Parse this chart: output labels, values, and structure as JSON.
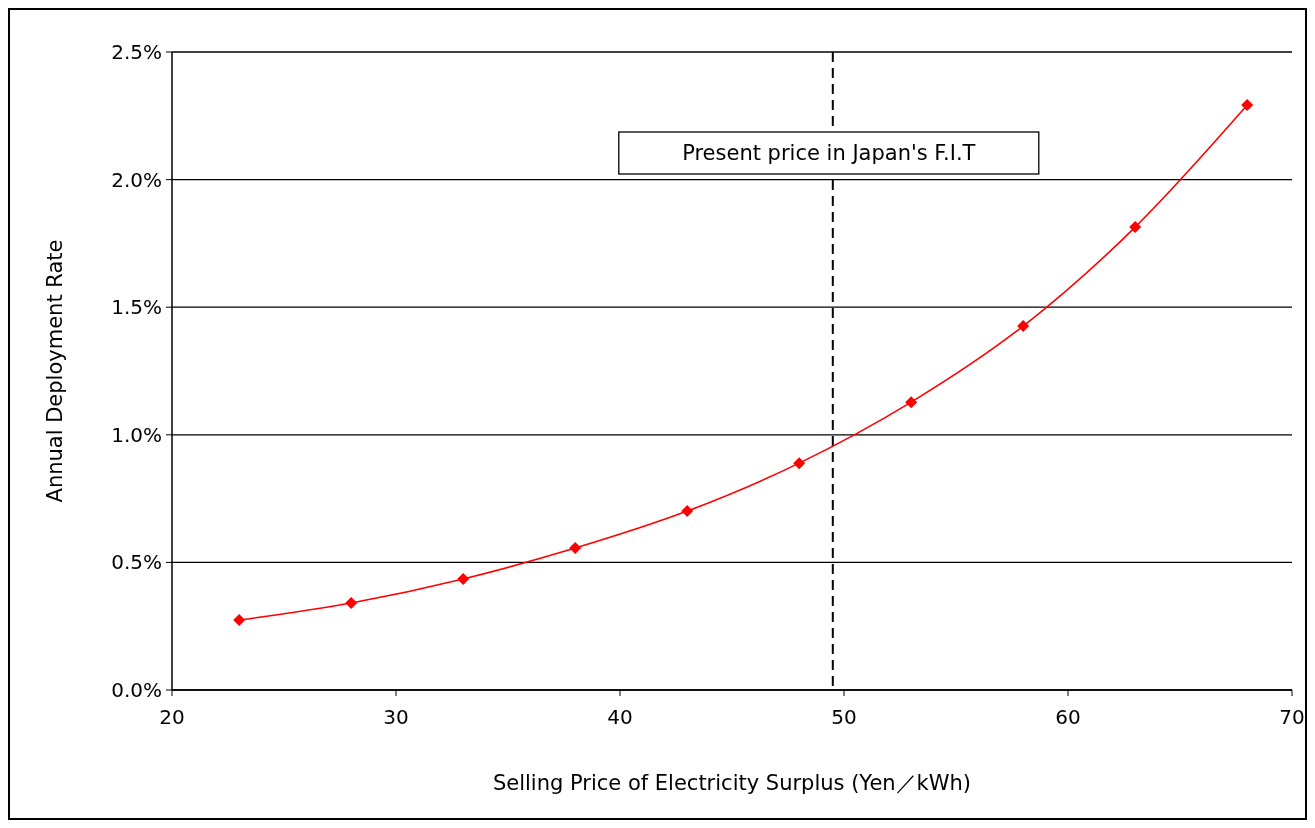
{
  "chart_data": {
    "type": "line",
    "xlabel": "Selling Price of Electricity Surplus (Yen／kWh)",
    "ylabel": "Annual Deployment Rate",
    "x": [
      23,
      28,
      33,
      38,
      43,
      48,
      53,
      58,
      63,
      68
    ],
    "series": [
      {
        "color": "#ff0000",
        "values": [
          0.274,
          0.341,
          0.435,
          0.556,
          0.701,
          0.889,
          1.128,
          1.426,
          1.814,
          2.292
        ]
      }
    ],
    "xlim": [
      20,
      70
    ],
    "xticks": [
      20,
      30,
      40,
      50,
      60,
      70
    ],
    "ylim": [
      0,
      2.5
    ],
    "yticks": [
      {
        "value": 0,
        "label": "0.0%"
      },
      {
        "value": 0.5,
        "label": "0.5%"
      },
      {
        "value": 1,
        "label": "1.0%"
      },
      {
        "value": 1.5,
        "label": "1.5%"
      },
      {
        "value": 2,
        "label": "2.0%"
      },
      {
        "value": 2.5,
        "label": "2.5%"
      }
    ],
    "grid": "y",
    "marker": "diamond",
    "line_style": "solid",
    "ref_lines": [
      {
        "axis": "x",
        "value": 49.5,
        "label": "Present price in Japan's F.I.T",
        "color": "#000000",
        "line_style": "dashed"
      }
    ]
  }
}
